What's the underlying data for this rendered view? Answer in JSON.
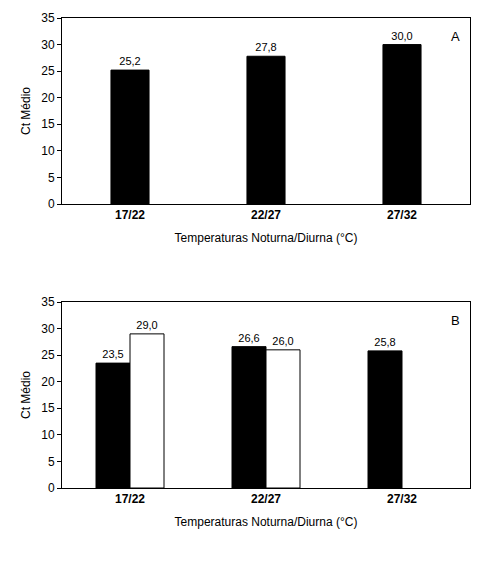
{
  "chart_data": [
    {
      "type": "bar",
      "annotations": [
        "A"
      ],
      "x_label": "Temperaturas Noturna/Diurna (°C)",
      "y_label": "Ct Médio",
      "categories": [
        "17/22",
        "22/27",
        "27/32"
      ],
      "series": [
        {
          "color": "#000000",
          "values": [
            25.2,
            27.8,
            30.0
          ],
          "value_labels": [
            "25,2",
            "27,8",
            "30,0"
          ]
        }
      ],
      "ylim": [
        0,
        35
      ],
      "yticks": [
        0,
        5,
        10,
        15,
        20,
        25,
        30,
        35
      ],
      "grid": false,
      "data_labels": true
    },
    {
      "type": "bar",
      "annotations": [
        "B"
      ],
      "x_label": "Temperaturas Noturna/Diurna (°C)",
      "y_label": "Ct Médio",
      "categories": [
        "17/22",
        "22/27",
        "27/32"
      ],
      "series": [
        {
          "color": "#000000",
          "values": [
            23.5,
            26.6,
            25.8
          ],
          "value_labels": [
            "23,5",
            "26,6",
            "25,8"
          ]
        },
        {
          "color": "#ffffff",
          "values": [
            29.0,
            26.0,
            null
          ],
          "value_labels": [
            "29,0",
            "26,0",
            null
          ]
        }
      ],
      "ylim": [
        0,
        35
      ],
      "yticks": [
        0,
        5,
        10,
        15,
        20,
        25,
        30,
        35
      ],
      "grid": false,
      "data_labels": true
    }
  ]
}
